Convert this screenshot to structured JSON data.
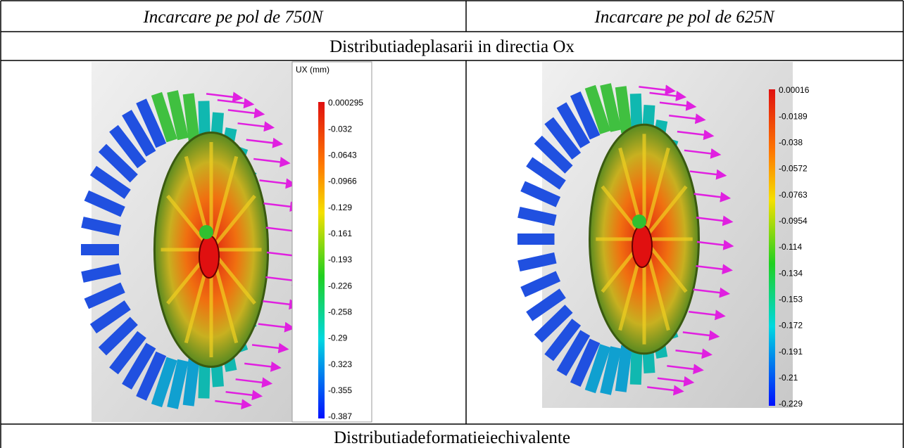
{
  "header": [
    "Incarcare pe pol de 750N",
    "Incarcare pe pol de 625N"
  ],
  "section1": "Distributiadeplasarii in directia Ox",
  "panels": [
    {
      "legend_title": "UX (mm)",
      "legend_labels": [
        "0.000295",
        "-0.032",
        "-0.0643",
        "-0.0966",
        "-0.129",
        "-0.161",
        "-0.193",
        "-0.226",
        "-0.258",
        "-0.29",
        "-0.323",
        "-0.355",
        "-0.387"
      ]
    },
    {
      "legend_labels": [
        "0.00016",
        "-0.0189",
        "-0.038",
        "-0.0572",
        "-0.0763",
        "-0.0954",
        "-0.114",
        "-0.134",
        "-0.153",
        "-0.172",
        "-0.191",
        "-0.21",
        "-0.229"
      ]
    }
  ],
  "section2": "Distributiadeformatieiechivalente"
}
